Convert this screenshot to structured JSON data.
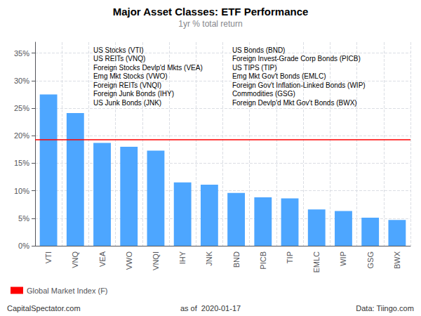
{
  "chart_data": {
    "type": "bar",
    "title": "Major Asset Classes: ETF Performance",
    "subtitle": "1yr % total return",
    "categories": [
      "VTI",
      "VNQ",
      "VEA",
      "VWO",
      "VNQI",
      "IHY",
      "JNK",
      "BND",
      "PICB",
      "TIP",
      "EMLC",
      "WIP",
      "GSG",
      "BWX"
    ],
    "values": [
      27.5,
      24.1,
      18.7,
      18.0,
      17.3,
      11.5,
      11.1,
      9.6,
      8.8,
      8.6,
      6.6,
      6.3,
      5.1,
      4.7
    ],
    "color": "#4da6ff",
    "ylim": [
      0,
      37
    ],
    "yticks": [
      {
        "value": 0,
        "label": "0%"
      },
      {
        "value": 5,
        "label": "5%"
      },
      {
        "value": 10,
        "label": "10%"
      },
      {
        "value": 15,
        "label": "15%"
      },
      {
        "value": 20,
        "label": "20%"
      },
      {
        "value": 25,
        "label": "25%"
      },
      {
        "value": 30,
        "label": "30%"
      },
      {
        "value": 35,
        "label": "35%"
      }
    ],
    "grid": true,
    "reference_line": {
      "value": 19.3,
      "label": "Global Market Index (F)",
      "color": "#ff0000"
    },
    "legend": "lower left",
    "annotations": [
      "US Stocks (VTI)",
      "US REITs (VNQ)",
      "Foreign Stocks Devlp'd Mkts (VEA)",
      "Emg Mkt Stocks (VWO)",
      "Foreign REITs (VNQI)",
      "Foreign Junk Bonds (IHY)",
      "US Junk Bonds (JNK)",
      "US Bonds (BND)",
      "Foreign Invest-Grade Corp Bonds (PICB)",
      "US TIPS (TIP)",
      "Emg Mkt Gov't Bonds (EMLC)",
      "Foreign Gov't Inflation-Linked Bonds (WIP)",
      "Commodities (GSG)",
      "Foreign Devlp'd Mkt Gov't Bonds (BWX)"
    ],
    "footer": [
      "CapitalSpectator.com",
      "as of  2020-01-17",
      "Data: Tiingo.com"
    ]
  }
}
